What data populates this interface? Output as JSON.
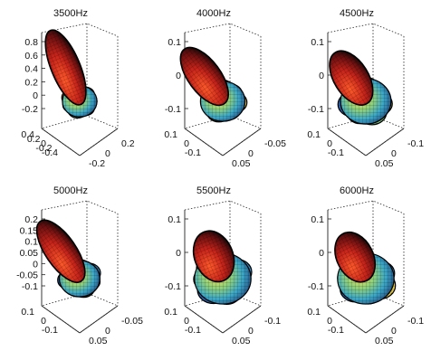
{
  "chart_data": {
    "type": "3d-surface-grid",
    "panels": [
      {
        "title": "3500Hz",
        "z_ticks": [
          "0.8",
          "0.6",
          "0.4",
          "0.2",
          "0",
          "-0.2"
        ],
        "y_ticks": [
          "0.4",
          "0.2",
          "0",
          "-0.2",
          "-0.4"
        ],
        "x_ticks": [
          "-0.2",
          "0",
          "0.2"
        ],
        "lobe": {
          "dir": [
            0.35,
            0.85
          ],
          "len": 0.95,
          "width": 0.36
        }
      },
      {
        "title": "4000Hz",
        "z_ticks": [
          "0.1",
          "0",
          "-0.1"
        ],
        "y_ticks": [
          "0.1",
          "0",
          "-0.1"
        ],
        "x_ticks": [
          "0.05",
          "0",
          "-0.05"
        ],
        "lobe": {
          "dir": [
            0.55,
            0.75
          ],
          "len": 0.7,
          "width": 0.45
        }
      },
      {
        "title": "4500Hz",
        "z_ticks": [
          "0.1",
          "0",
          "-0.1"
        ],
        "y_ticks": [
          "0.1",
          "0",
          "-0.1"
        ],
        "x_ticks": [
          "0.05",
          "0",
          "-0.1"
        ],
        "lobe": {
          "dir": [
            0.5,
            0.8
          ],
          "len": 0.55,
          "width": 0.5
        }
      },
      {
        "title": "5000Hz",
        "z_ticks": [
          "0.2",
          "0.15",
          "0.1",
          "0.05",
          "0",
          "-0.05",
          "-0.1"
        ],
        "y_ticks": [
          "0.1",
          "0",
          "-0.1"
        ],
        "x_ticks": [
          "0.05",
          "0",
          "-0.05"
        ],
        "lobe": {
          "dir": [
            0.55,
            0.8
          ],
          "len": 0.8,
          "width": 0.4
        }
      },
      {
        "title": "5500Hz",
        "z_ticks": [
          "0.1",
          "0",
          "-0.1"
        ],
        "y_ticks": [
          "0.1",
          "0",
          "-0.1"
        ],
        "x_ticks": [
          "0.05",
          "0",
          "-0.1"
        ],
        "lobe": {
          "dir": [
            0.2,
            0.5
          ],
          "len": 0.4,
          "width": 0.6
        }
      },
      {
        "title": "6000Hz",
        "z_ticks": [
          "0.1",
          "0",
          "-0.1"
        ],
        "y_ticks": [
          "0.1",
          "0",
          "-0.1"
        ],
        "x_ticks": [
          "0.05",
          "0",
          "-0.1"
        ],
        "lobe": {
          "dir": [
            0.3,
            0.6
          ],
          "len": 0.4,
          "width": 0.55
        }
      }
    ]
  }
}
